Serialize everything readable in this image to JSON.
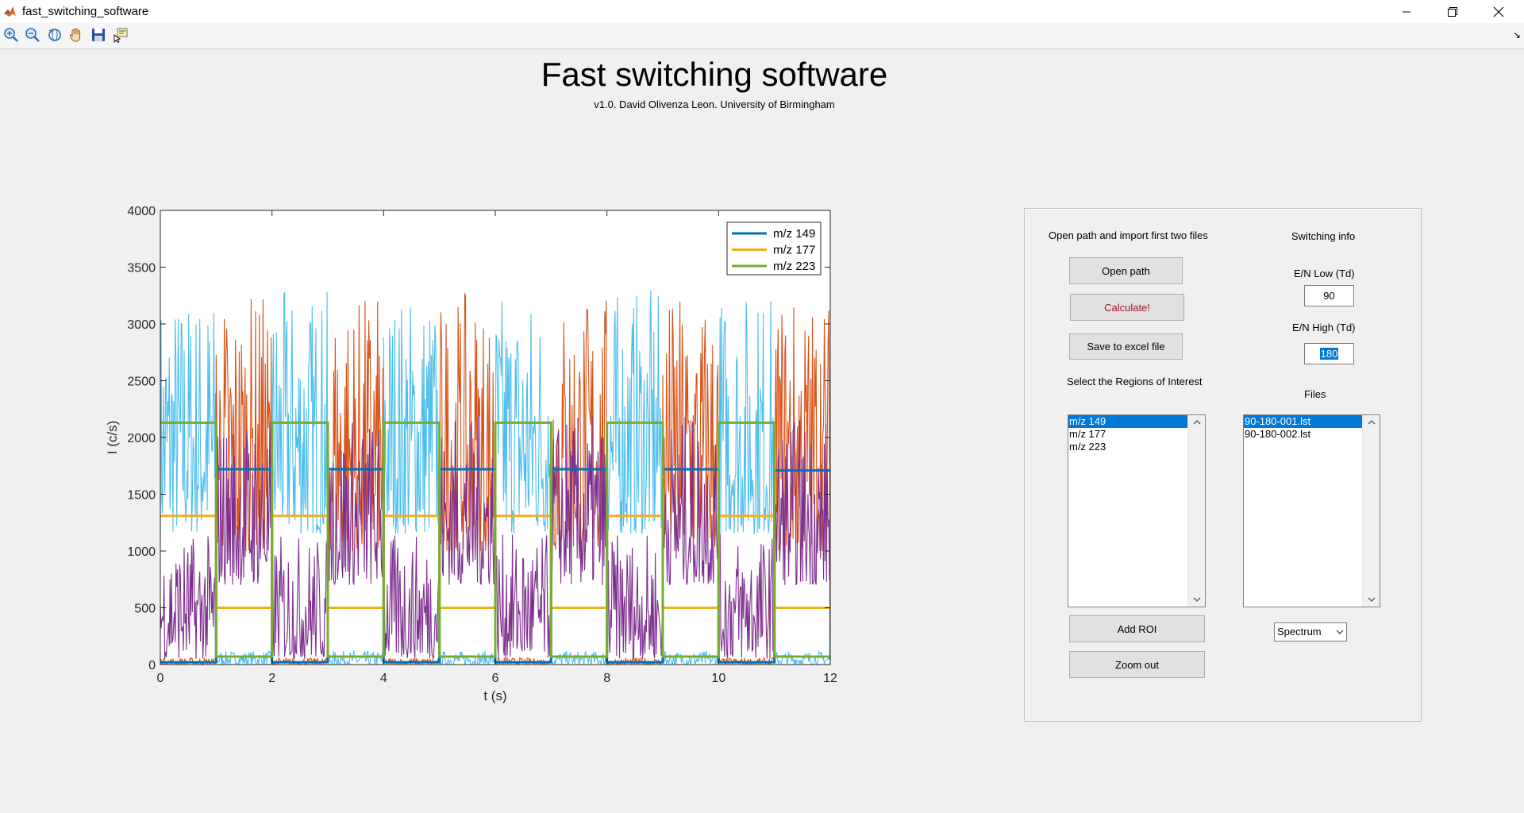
{
  "window": {
    "title": "fast_switching_software"
  },
  "toolbar": {
    "tools": [
      {
        "icon": "zoom-in-icon"
      },
      {
        "icon": "zoom-out-icon"
      },
      {
        "icon": "rotate-icon"
      },
      {
        "icon": "pan-hand-icon"
      },
      {
        "icon": "save-icon"
      },
      {
        "icon": "data-cursor-icon"
      }
    ]
  },
  "header": {
    "title": "Fast switching software",
    "subtitle": "v1.0. David Olivenza Leon. University of Birmingham"
  },
  "panel": {
    "open_path_heading": "Open path and import first two files",
    "open_path_label": "Open path",
    "calculate_label": "Calculate!",
    "save_label": "Save to excel file",
    "roi_heading": "Select the Regions of Interest",
    "roi_list": [
      "m/z 149",
      "m/z 177",
      "m/z 223"
    ],
    "add_roi_label": "Add ROI",
    "zoom_out_label": "Zoom out",
    "switching_heading": "Switching info",
    "en_low_label": "E/N Low (Td)",
    "en_low_value": "90",
    "en_high_label": "E/N High (Td)",
    "en_high_value": "180",
    "files_heading": "Files",
    "files_list": [
      "90-180-001.lst",
      "90-180-002.lst"
    ],
    "view_select": "Spectrum",
    "colors": {
      "selection": "#0078d7",
      "calculate_text": "#a2142f"
    }
  },
  "chart_data": {
    "type": "line",
    "xlabel": "t (s)",
    "ylabel": "I (c/s)",
    "xlim": [
      0,
      12
    ],
    "ylim": [
      0,
      4000
    ],
    "xticks": [
      0,
      2,
      4,
      6,
      8,
      10,
      12
    ],
    "yticks": [
      0,
      500,
      1000,
      1500,
      2000,
      2500,
      3000,
      3500,
      4000
    ],
    "legend_position": "top-right",
    "series": [
      {
        "name": "m/z 149",
        "color": "#0072bd",
        "x": [
          0,
          1,
          1,
          2,
          2,
          3,
          3,
          4,
          4,
          5,
          5,
          6,
          6,
          7,
          7,
          8,
          8,
          9,
          9,
          10,
          10,
          11,
          11,
          12
        ],
        "y": [
          20,
          20,
          1720,
          1720,
          20,
          20,
          1720,
          1720,
          20,
          20,
          1720,
          1720,
          20,
          20,
          1720,
          1720,
          20,
          20,
          1720,
          1720,
          20,
          20,
          1710,
          1710
        ]
      },
      {
        "name": "m/z 177",
        "color": "#edb120",
        "x": [
          0,
          1,
          1,
          2,
          2,
          3,
          3,
          4,
          4,
          5,
          5,
          6,
          6,
          7,
          7,
          8,
          8,
          9,
          9,
          10,
          10,
          11,
          11,
          12
        ],
        "y": [
          1310,
          1310,
          500,
          500,
          1310,
          1310,
          500,
          500,
          1310,
          1310,
          500,
          500,
          1310,
          1310,
          500,
          500,
          1310,
          1310,
          500,
          500,
          1310,
          1310,
          500,
          500
        ]
      },
      {
        "name": "m/z 223",
        "color": "#77ac30",
        "x": [
          0,
          1,
          1,
          2,
          2,
          3,
          3,
          4,
          4,
          5,
          5,
          6,
          6,
          7,
          7,
          8,
          8,
          9,
          9,
          10,
          10,
          11,
          11,
          12
        ],
        "y": [
          2130,
          2130,
          70,
          70,
          2130,
          2130,
          70,
          70,
          2130,
          2130,
          70,
          70,
          2130,
          2130,
          70,
          70,
          2130,
          2130,
          70,
          70,
          2130,
          2130,
          70,
          70
        ]
      }
    ],
    "raw_traces": [
      {
        "color": "#4dbeee",
        "high": [
          1150,
          3300
        ],
        "low": [
          0,
          120
        ]
      },
      {
        "color": "#d95319",
        "high": [
          1000,
          3270
        ],
        "low": [
          0,
          60
        ]
      },
      {
        "color": "#7e2f8e",
        "high": [
          700,
          2200
        ],
        "low": [
          50,
          1150
        ]
      }
    ]
  }
}
